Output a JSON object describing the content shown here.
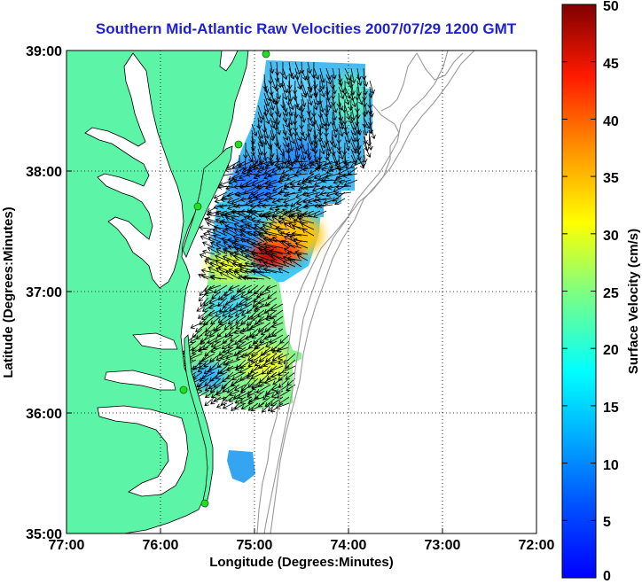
{
  "title": "Southern Mid-Atlantic Raw Velocities 2007/07/29 1200 GMT",
  "x_axis": {
    "label": "Longitude (Degrees:Minutes)",
    "ticks": [
      "77:00",
      "76:00",
      "75:00",
      "74:00",
      "73:00",
      "72:00"
    ]
  },
  "y_axis": {
    "label": "Latitude (Degrees:Minutes)",
    "ticks": [
      "39:00",
      "38:00",
      "37:00",
      "36:00",
      "35:00"
    ]
  },
  "colorbar": {
    "label": "Surface Velocity (cm/s)",
    "ticks": [
      "50",
      "45",
      "40",
      "35",
      "30",
      "25",
      "20",
      "15",
      "10",
      "5",
      "0"
    ],
    "range": [
      0,
      50
    ]
  },
  "map": {
    "lon_range": [
      -77,
      -72
    ],
    "lat_range": [
      35,
      39
    ],
    "grid": true,
    "colors": {
      "land": "#5cf5a8",
      "water": "#ffffff",
      "bathymetry": "#9a9a9a",
      "stations": "#22dd22"
    }
  }
}
